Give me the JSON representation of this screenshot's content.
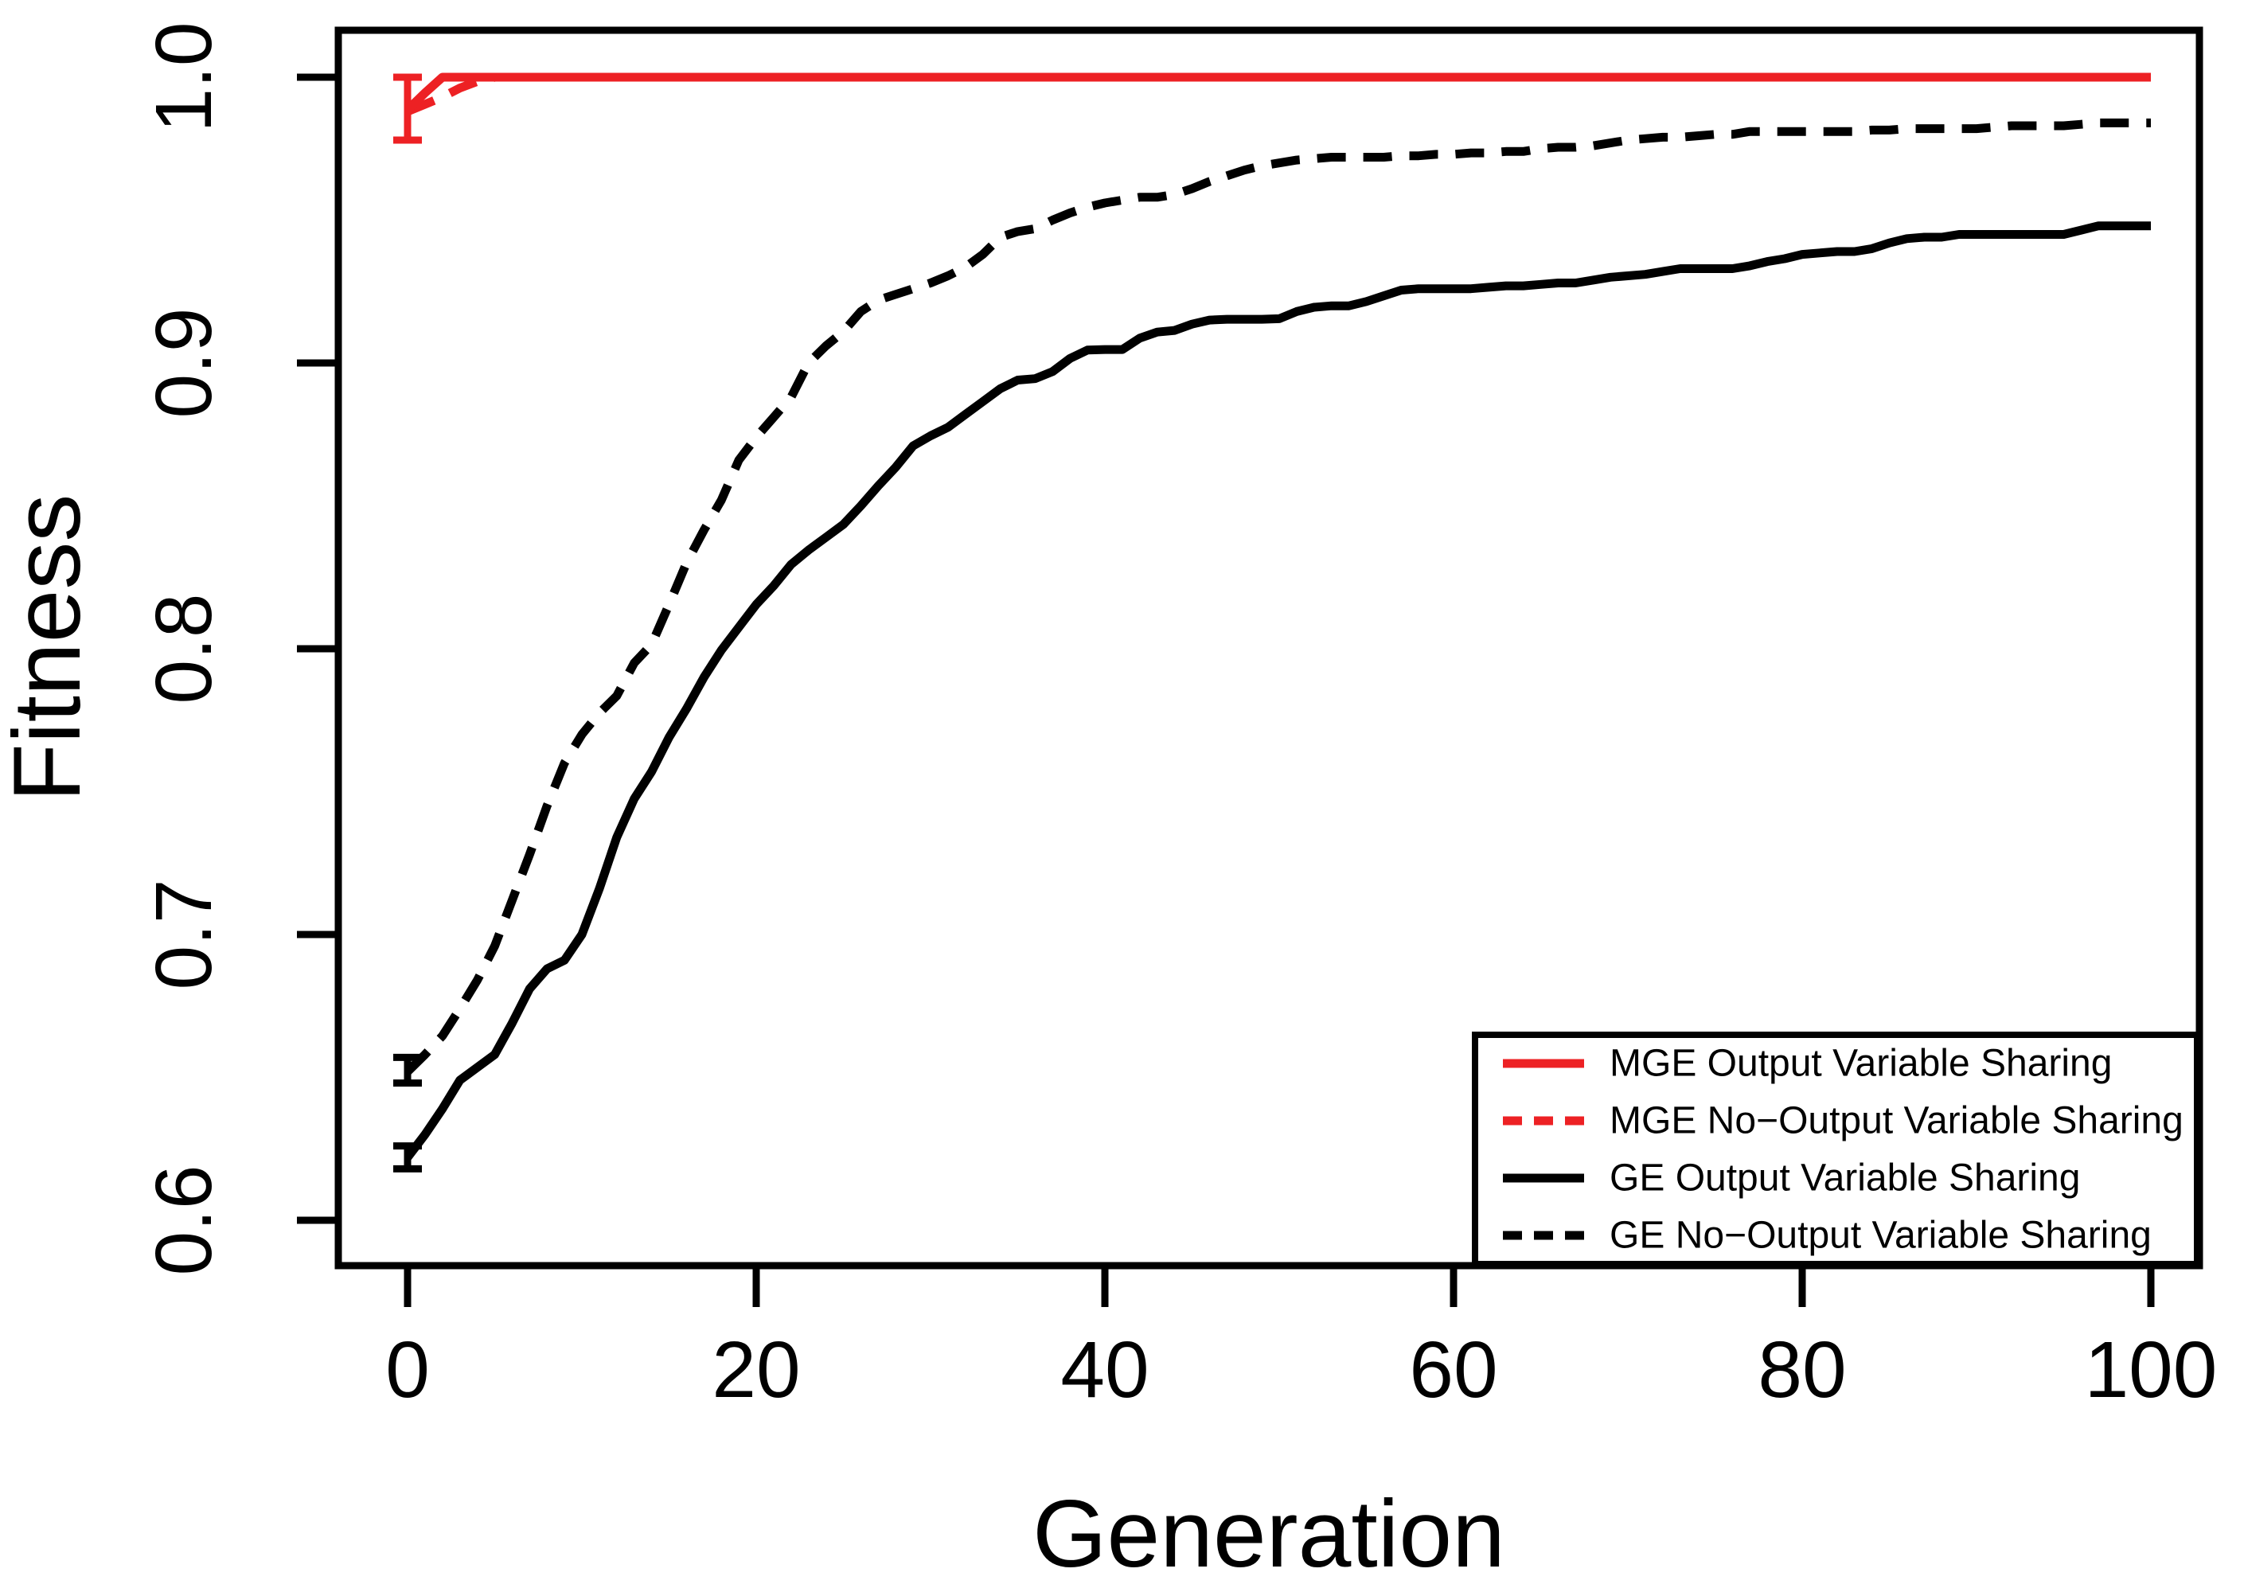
{
  "chart_data": {
    "type": "line",
    "title": "",
    "xlabel": "Generation",
    "ylabel": "Fitness",
    "xlim": [
      0,
      100
    ],
    "ylim": [
      0.588,
      1.016
    ],
    "x_ticks": [
      0,
      20,
      40,
      60,
      80,
      100
    ],
    "x_tick_labels": [
      "0",
      "20",
      "40",
      "60",
      "80",
      "100"
    ],
    "y_ticks": [
      0.6,
      0.7,
      0.8,
      0.9,
      1.0
    ],
    "y_tick_labels": [
      "0.6",
      "0.7",
      "0.8",
      "0.9",
      "1.0"
    ],
    "grid": false,
    "legend_position": "bottom-right",
    "colors": {
      "red": "#ed2124",
      "black": "#000000"
    },
    "series": [
      {
        "name": "MGE Output Variable Sharing",
        "color": "#ed2124",
        "style": "solid",
        "error_bar": {
          "x": 0,
          "low": 0.978,
          "high": 1.0
        },
        "points": [
          [
            0,
            0.9886
          ],
          [
            1,
            0.9945
          ],
          [
            2,
            1.0
          ],
          [
            10,
            1.0
          ],
          [
            20,
            1.0
          ],
          [
            30,
            1.0
          ],
          [
            40,
            1.0
          ],
          [
            50,
            1.0
          ],
          [
            60,
            1.0
          ],
          [
            70,
            1.0
          ],
          [
            80,
            1.0
          ],
          [
            90,
            1.0
          ],
          [
            100,
            1.0
          ]
        ]
      },
      {
        "name": "MGE No−Output Variable Sharing",
        "color": "#ed2124",
        "style": "dashed",
        "error_bar": null,
        "points": [
          [
            0,
            0.988
          ],
          [
            1,
            0.9905
          ],
          [
            2,
            0.9931
          ],
          [
            3,
            0.9962
          ],
          [
            4,
            0.9985
          ],
          [
            5,
            1.0
          ],
          [
            20,
            1.0
          ],
          [
            40,
            1.0
          ],
          [
            60,
            1.0
          ],
          [
            80,
            1.0
          ],
          [
            100,
            1.0
          ]
        ]
      },
      {
        "name": "GE Output Variable Sharing",
        "color": "#000000",
        "style": "solid",
        "error_bar": {
          "x": 0,
          "low": 0.618,
          "high": 0.626
        },
        "points": [
          [
            0,
            0.622
          ],
          [
            1,
            0.63
          ],
          [
            2,
            0.639
          ],
          [
            3,
            0.649
          ],
          [
            4,
            0.6535
          ],
          [
            5,
            0.658
          ],
          [
            6,
            0.669
          ],
          [
            7,
            0.681
          ],
          [
            8,
            0.688
          ],
          [
            9,
            0.691
          ],
          [
            10,
            0.7
          ],
          [
            11,
            0.716
          ],
          [
            12,
            0.734
          ],
          [
            13,
            0.7475
          ],
          [
            14,
            0.757
          ],
          [
            15,
            0.769
          ],
          [
            16,
            0.779
          ],
          [
            17,
            0.79
          ],
          [
            18,
            0.7995
          ],
          [
            19,
            0.8075
          ],
          [
            20,
            0.8155
          ],
          [
            21,
            0.822
          ],
          [
            22,
            0.8295
          ],
          [
            23,
            0.8345
          ],
          [
            24,
            0.839
          ],
          [
            25,
            0.8435
          ],
          [
            26,
            0.85
          ],
          [
            27,
            0.857
          ],
          [
            28,
            0.8635
          ],
          [
            29,
            0.871
          ],
          [
            30,
            0.8745
          ],
          [
            31,
            0.8775
          ],
          [
            32,
            0.882
          ],
          [
            33,
            0.8865
          ],
          [
            34,
            0.891
          ],
          [
            35,
            0.894
          ],
          [
            36,
            0.8945
          ],
          [
            37,
            0.897
          ],
          [
            38,
            0.9016
          ],
          [
            39,
            0.9045
          ],
          [
            40,
            0.9047
          ],
          [
            41,
            0.9047
          ],
          [
            42,
            0.9087
          ],
          [
            43,
            0.9108
          ],
          [
            44,
            0.9114
          ],
          [
            45,
            0.9136
          ],
          [
            46,
            0.915
          ],
          [
            47,
            0.9153
          ],
          [
            48,
            0.9153
          ],
          [
            49,
            0.9153
          ],
          [
            50,
            0.9155
          ],
          [
            51,
            0.918
          ],
          [
            52,
            0.9195
          ],
          [
            53,
            0.92
          ],
          [
            54,
            0.92
          ],
          [
            55,
            0.9215
          ],
          [
            56,
            0.9235
          ],
          [
            57,
            0.9255
          ],
          [
            58,
            0.926
          ],
          [
            59,
            0.926
          ],
          [
            60,
            0.926
          ],
          [
            61,
            0.926
          ],
          [
            62,
            0.9265
          ],
          [
            63,
            0.927
          ],
          [
            64,
            0.927
          ],
          [
            65,
            0.9275
          ],
          [
            66,
            0.928
          ],
          [
            67,
            0.928
          ],
          [
            68,
            0.929
          ],
          [
            69,
            0.93
          ],
          [
            70,
            0.9305
          ],
          [
            71,
            0.931
          ],
          [
            72,
            0.932
          ],
          [
            73,
            0.933
          ],
          [
            74,
            0.933
          ],
          [
            75,
            0.933
          ],
          [
            76,
            0.933
          ],
          [
            77,
            0.934
          ],
          [
            78,
            0.9355
          ],
          [
            79,
            0.9365
          ],
          [
            80,
            0.938
          ],
          [
            81,
            0.9385
          ],
          [
            82,
            0.939
          ],
          [
            83,
            0.939
          ],
          [
            84,
            0.94
          ],
          [
            85,
            0.942
          ],
          [
            86,
            0.9435
          ],
          [
            87,
            0.944
          ],
          [
            88,
            0.944
          ],
          [
            89,
            0.945
          ],
          [
            90,
            0.945
          ],
          [
            91,
            0.945
          ],
          [
            92,
            0.945
          ],
          [
            93,
            0.945
          ],
          [
            94,
            0.945
          ],
          [
            95,
            0.945
          ],
          [
            96,
            0.9465
          ],
          [
            97,
            0.948
          ],
          [
            98,
            0.948
          ],
          [
            99,
            0.948
          ],
          [
            100,
            0.948
          ]
        ]
      },
      {
        "name": "GE No−Output Variable Sharing",
        "color": "#000000",
        "style": "dashed",
        "error_bar": {
          "x": 0,
          "low": 0.648,
          "high": 0.657
        },
        "points": [
          [
            0,
            0.652
          ],
          [
            1,
            0.658
          ],
          [
            2,
            0.6645
          ],
          [
            3,
            0.674
          ],
          [
            4,
            0.684
          ],
          [
            5,
            0.696
          ],
          [
            6,
            0.712
          ],
          [
            7,
            0.728
          ],
          [
            8,
            0.745
          ],
          [
            9,
            0.76
          ],
          [
            10,
            0.77
          ],
          [
            11,
            0.7775
          ],
          [
            12,
            0.7835
          ],
          [
            13,
            0.795
          ],
          [
            14,
            0.8015
          ],
          [
            15,
            0.8155
          ],
          [
            16,
            0.83
          ],
          [
            17,
            0.8415
          ],
          [
            18,
            0.852
          ],
          [
            19,
            0.866
          ],
          [
            20,
            0.874
          ],
          [
            21,
            0.881
          ],
          [
            22,
            0.888
          ],
          [
            23,
            0.9
          ],
          [
            24,
            0.906
          ],
          [
            25,
            0.911
          ],
          [
            26,
            0.918
          ],
          [
            27,
            0.922
          ],
          [
            28,
            0.924
          ],
          [
            29,
            0.926
          ],
          [
            30,
            0.928
          ],
          [
            31,
            0.9305
          ],
          [
            32,
            0.9335
          ],
          [
            33,
            0.938
          ],
          [
            34,
            0.944
          ],
          [
            35,
            0.946
          ],
          [
            36,
            0.947
          ],
          [
            37,
            0.95
          ],
          [
            38,
            0.9525
          ],
          [
            39,
            0.9545
          ],
          [
            40,
            0.956
          ],
          [
            41,
            0.957
          ],
          [
            42,
            0.958
          ],
          [
            43,
            0.958
          ],
          [
            44,
            0.959
          ],
          [
            45,
            0.961
          ],
          [
            46,
            0.9635
          ],
          [
            47,
            0.9655
          ],
          [
            48,
            0.9675
          ],
          [
            49,
            0.969
          ],
          [
            50,
            0.97
          ],
          [
            51,
            0.971
          ],
          [
            52,
            0.9715
          ],
          [
            53,
            0.972
          ],
          [
            54,
            0.972
          ],
          [
            55,
            0.972
          ],
          [
            56,
            0.972
          ],
          [
            57,
            0.9725
          ],
          [
            58,
            0.9725
          ],
          [
            59,
            0.973
          ],
          [
            60,
            0.973
          ],
          [
            61,
            0.9735
          ],
          [
            62,
            0.9735
          ],
          [
            63,
            0.974
          ],
          [
            64,
            0.974
          ],
          [
            65,
            0.975
          ],
          [
            66,
            0.9755
          ],
          [
            67,
            0.9755
          ],
          [
            68,
            0.976
          ],
          [
            69,
            0.977
          ],
          [
            70,
            0.978
          ],
          [
            71,
            0.9785
          ],
          [
            72,
            0.979
          ],
          [
            73,
            0.979
          ],
          [
            74,
            0.9795
          ],
          [
            75,
            0.98
          ],
          [
            76,
            0.98
          ],
          [
            77,
            0.981
          ],
          [
            78,
            0.981
          ],
          [
            79,
            0.981
          ],
          [
            80,
            0.981
          ],
          [
            81,
            0.981
          ],
          [
            82,
            0.981
          ],
          [
            83,
            0.981
          ],
          [
            84,
            0.9815
          ],
          [
            85,
            0.9815
          ],
          [
            86,
            0.982
          ],
          [
            87,
            0.982
          ],
          [
            88,
            0.982
          ],
          [
            89,
            0.982
          ],
          [
            90,
            0.982
          ],
          [
            91,
            0.9825
          ],
          [
            92,
            0.983
          ],
          [
            93,
            0.983
          ],
          [
            94,
            0.983
          ],
          [
            95,
            0.983
          ],
          [
            96,
            0.9835
          ],
          [
            97,
            0.984
          ],
          [
            98,
            0.984
          ],
          [
            99,
            0.984
          ],
          [
            100,
            0.984
          ]
        ]
      }
    ]
  }
}
